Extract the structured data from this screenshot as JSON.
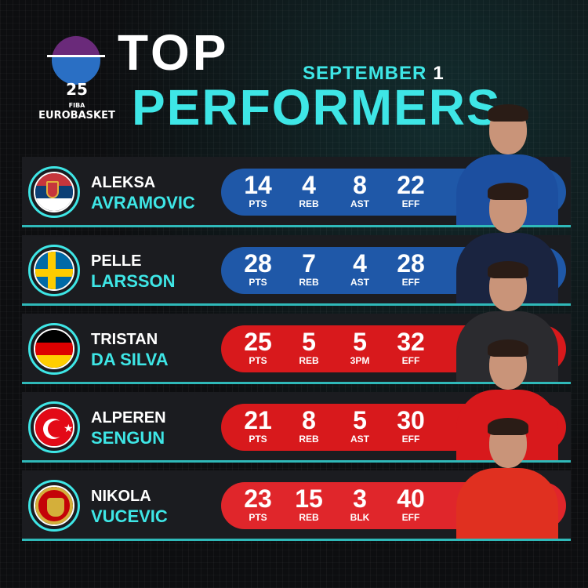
{
  "brand": {
    "logo_number": "25",
    "logo_fiba": "FIBA",
    "logo_name": "EUROBASKET"
  },
  "title": {
    "line1": "TOP",
    "line2": "PERFORMERS",
    "date_month": "SEPTEMBER",
    "date_day": "1"
  },
  "colors": {
    "accent": "#3ee6e6",
    "blue_pill": "#1f58a8",
    "red_pill": "#d8191c"
  },
  "players": [
    {
      "first": "ALEKSA",
      "last": "AVRAMOVIC",
      "country": "Serbia",
      "stats": [
        {
          "v": "14",
          "l": "PTS"
        },
        {
          "v": "4",
          "l": "REB"
        },
        {
          "v": "8",
          "l": "AST"
        },
        {
          "v": "22",
          "l": "EFF"
        }
      ]
    },
    {
      "first": "PELLE",
      "last": "LARSSON",
      "country": "Sweden",
      "stats": [
        {
          "v": "28",
          "l": "PTS"
        },
        {
          "v": "7",
          "l": "REB"
        },
        {
          "v": "4",
          "l": "AST"
        },
        {
          "v": "28",
          "l": "EFF"
        }
      ]
    },
    {
      "first": "TRISTAN",
      "last": "DA SILVA",
      "country": "Germany",
      "stats": [
        {
          "v": "25",
          "l": "PTS"
        },
        {
          "v": "5",
          "l": "REB"
        },
        {
          "v": "5",
          "l": "3PM"
        },
        {
          "v": "32",
          "l": "EFF"
        }
      ]
    },
    {
      "first": "ALPEREN",
      "last": "SENGUN",
      "country": "Turkey",
      "stats": [
        {
          "v": "21",
          "l": "PTS"
        },
        {
          "v": "8",
          "l": "REB"
        },
        {
          "v": "5",
          "l": "AST"
        },
        {
          "v": "30",
          "l": "EFF"
        }
      ]
    },
    {
      "first": "NIKOLA",
      "last": "VUCEVIC",
      "country": "Montenegro",
      "stats": [
        {
          "v": "23",
          "l": "PTS"
        },
        {
          "v": "15",
          "l": "REB"
        },
        {
          "v": "3",
          "l": "BLK"
        },
        {
          "v": "40",
          "l": "EFF"
        }
      ]
    }
  ]
}
